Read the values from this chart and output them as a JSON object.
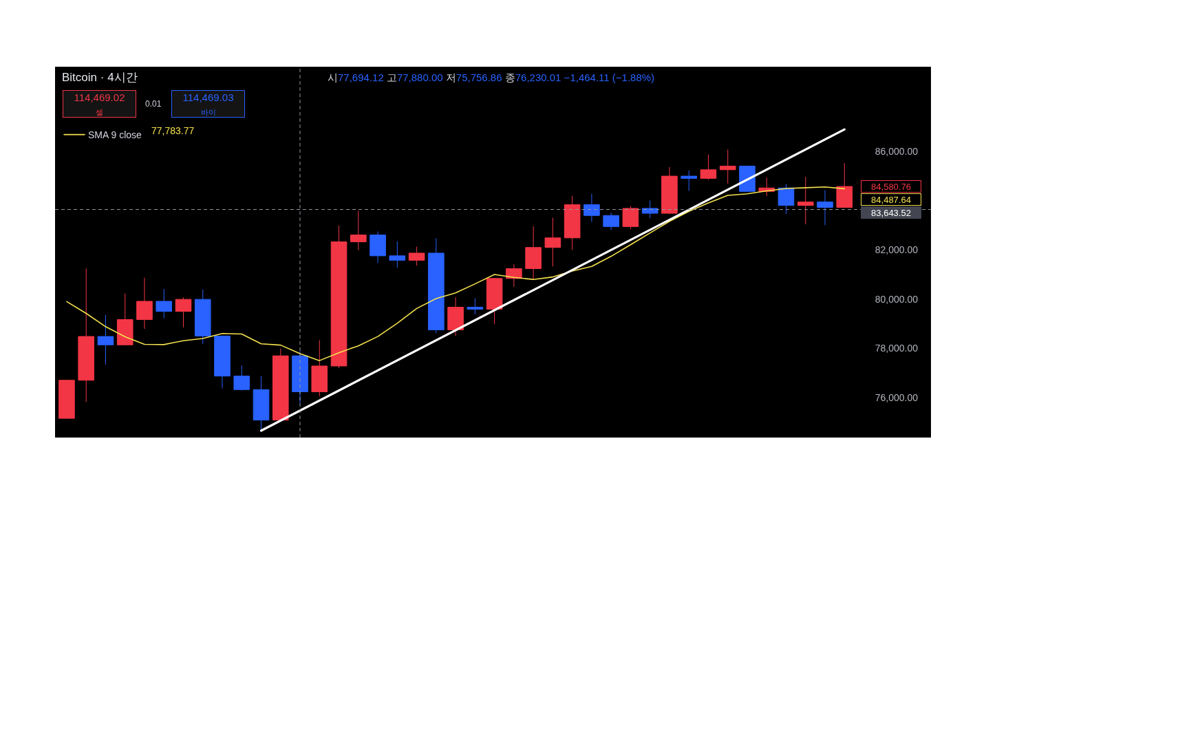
{
  "chart_data": {
    "type": "candlestick",
    "title": "Bitcoin · 4시간",
    "subtitle": "시77,694.12 고77,880.00 저75,756.86 종76,230.01 −1,464.11 (−1.88%)",
    "categories": [
      null,
      null,
      null,
      null,
      null,
      null,
      null,
      null,
      null,
      null,
      null,
      null,
      null,
      null,
      null,
      null,
      null,
      null,
      null,
      null,
      null,
      null,
      null,
      null,
      null,
      null,
      null,
      null,
      null,
      null,
      null,
      null,
      null,
      null,
      null,
      null,
      null,
      null,
      null,
      null,
      null
    ],
    "series": [
      {
        "ohlc": [
          [
            75150,
            76700,
            75150,
            76700
          ],
          [
            76700,
            81240,
            75820,
            78480
          ],
          [
            78480,
            79360,
            77340,
            78140
          ],
          [
            78140,
            80230,
            78140,
            79170
          ],
          [
            79170,
            80870,
            78790,
            79910
          ],
          [
            79910,
            80410,
            79220,
            79500
          ],
          [
            79500,
            80070,
            78850,
            79990
          ],
          [
            79990,
            80390,
            78180,
            78500
          ],
          [
            78500,
            78500,
            76370,
            76870
          ],
          [
            76870,
            77300,
            76280,
            76320
          ],
          [
            76320,
            76870,
            74650,
            75080
          ],
          [
            75080,
            77990,
            75080,
            77694.12
          ],
          [
            77694.12,
            77880.0,
            75756.86,
            76230.01
          ],
          [
            76230.01,
            78330,
            76050,
            77280
          ],
          [
            77280,
            82990,
            77190,
            82330
          ],
          [
            82330,
            83590,
            81990,
            82610
          ],
          [
            82610,
            82750,
            81470,
            81760
          ],
          [
            81760,
            82350,
            81280,
            81580
          ],
          [
            81580,
            82130,
            81360,
            81870
          ],
          [
            81870,
            82470,
            78620,
            78750
          ],
          [
            78750,
            80070,
            78500,
            79670
          ],
          [
            79670,
            80040,
            79380,
            79590
          ],
          [
            79590,
            80870,
            78980,
            80840
          ],
          [
            80840,
            81410,
            80500,
            81240
          ],
          [
            81240,
            82960,
            80790,
            82100
          ],
          [
            82100,
            83310,
            81330,
            82490
          ],
          [
            82490,
            84200,
            82000,
            83840
          ],
          [
            83840,
            84280,
            83140,
            83400
          ],
          [
            83400,
            83520,
            82810,
            82950
          ],
          [
            82950,
            83790,
            82840,
            83690
          ],
          [
            83690,
            84010,
            83300,
            83490
          ],
          [
            83490,
            85370,
            83460,
            85000
          ],
          [
            85000,
            85230,
            84400,
            84910
          ],
          [
            84910,
            85880,
            84850,
            85260
          ],
          [
            85260,
            86080,
            84700,
            85410
          ],
          [
            85410,
            85410,
            84380,
            84380
          ],
          [
            84380,
            84940,
            84190,
            84520
          ],
          [
            84520,
            84680,
            83460,
            83810
          ],
          [
            83810,
            84970,
            83040,
            83950
          ],
          [
            83950,
            84430,
            83010,
            83730
          ],
          [
            83730,
            85530,
            83730,
            84580.76
          ]
        ],
        "colors": [
          "#f23645",
          "#f23645",
          "#2962ff",
          "#f23645",
          "#f23645",
          "#2962ff",
          "#f23645",
          "#2962ff",
          "#2962ff",
          "#2962ff",
          "#2962ff",
          "#f23645",
          "#2962ff",
          "#f23645",
          "#f23645",
          "#f23645",
          "#2962ff",
          "#2962ff",
          "#f23645",
          "#2962ff",
          "#f23645",
          "#2962ff",
          "#f23645",
          "#f23645",
          "#f23645",
          "#f23645",
          "#f23645",
          "#2962ff",
          "#2962ff",
          "#f23645",
          "#2962ff",
          "#f23645",
          "#2962ff",
          "#f23645",
          "#f23645",
          "#2962ff",
          "#f23645",
          "#2962ff",
          "#f23645",
          "#2962ff",
          "#f23645"
        ]
      },
      {
        "type": "line",
        "name": "SMA 9 close",
        "color": "#f5e14e",
        "values": [
          79900,
          79420,
          78880,
          78470,
          78160,
          78150,
          78310,
          78400,
          78600,
          78580,
          78180,
          78130,
          77783.77,
          77500,
          77820,
          78100,
          78480,
          79020,
          79620,
          80020,
          80250,
          80620,
          81000,
          80880,
          80800,
          80900,
          81140,
          81330,
          81740,
          82210,
          82690,
          83160,
          83570,
          83910,
          84220,
          84280,
          84400,
          84500,
          84530,
          84560,
          84487.64
        ]
      },
      {
        "type": "line",
        "color": "#ffffff",
        "values": [
          null,
          null,
          null,
          null,
          null,
          null,
          null,
          null,
          null,
          null,
          74650,
          null,
          null,
          null,
          null,
          null,
          null,
          null,
          null,
          null,
          null,
          null,
          null,
          null,
          null,
          null,
          null,
          null,
          null,
          null,
          null,
          null,
          null,
          null,
          null,
          null,
          null,
          null,
          null,
          null,
          86900
        ]
      }
    ],
    "ylim": [
      74370,
      89450
    ],
    "yticks": [
      {
        "value": 76000,
        "label": "76,000.00"
      },
      {
        "value": 78000,
        "label": "78,000.00"
      },
      {
        "value": 80000,
        "label": "80,000.00"
      },
      {
        "value": 82000,
        "label": "82,000.00"
      },
      {
        "value": 86000,
        "label": "86,000.00"
      }
    ],
    "tick_labels": "y",
    "legend": "top left",
    "ref_lines": [
      {
        "axis": "y",
        "value": 83643.52,
        "label": "83,643.52",
        "color": "#9598a1",
        "line_style": "dashed"
      }
    ],
    "annotations": [
      "114,469.02\n셀",
      "0.01",
      "114,469.03\n바이",
      "77,783.77",
      "84,580.76",
      "84,487.64"
    ]
  }
}
